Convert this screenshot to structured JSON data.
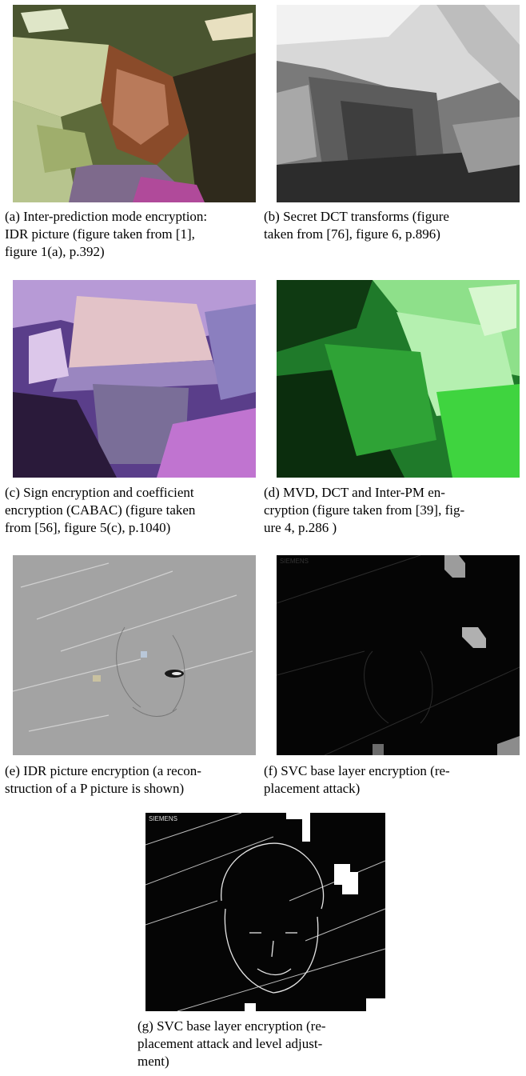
{
  "figure": {
    "panels": [
      {
        "id": "a",
        "image_name": "inter-prediction-mode-encryption-image",
        "caption_lines": [
          "(a) Inter-prediction mode encryption:",
          "IDR picture (figure taken from [1],",
          "figure 1(a), p.392)"
        ]
      },
      {
        "id": "b",
        "image_name": "secret-dct-transforms-image",
        "caption_lines": [
          "(b) Secret DCT transforms (figure",
          "taken from [76], figure 6, p.896)"
        ]
      },
      {
        "id": "c",
        "image_name": "sign-encryption-cabac-image",
        "caption_lines": [
          "(c) Sign encryption and coefficient",
          "encryption (CABAC) (figure taken",
          "from [56], figure 5(c), p.1040)"
        ]
      },
      {
        "id": "d",
        "image_name": "mvd-dct-inter-pm-image",
        "caption_lines": [
          "(d) MVD, DCT and Inter-PM en-",
          "cryption (figure taken from [39], fig-",
          "ure 4, p.286 )"
        ]
      },
      {
        "id": "e",
        "image_name": "idr-picture-encryption-image",
        "caption_lines": [
          "(e) IDR picture encryption (a recon-",
          "struction of a P picture is shown)"
        ]
      },
      {
        "id": "f",
        "image_name": "svc-replacement-attack-image",
        "watermark": "SIEMENS",
        "caption_lines": [
          "(f) SVC base layer encryption (re-",
          "placement attack)"
        ]
      },
      {
        "id": "g",
        "image_name": "svc-replacement-attack-level-adjustment-image",
        "watermark": "SIEMENS",
        "caption_lines": [
          "(g) SVC base layer encryption (re-",
          "placement attack and level adjust-",
          "ment)"
        ]
      }
    ]
  }
}
